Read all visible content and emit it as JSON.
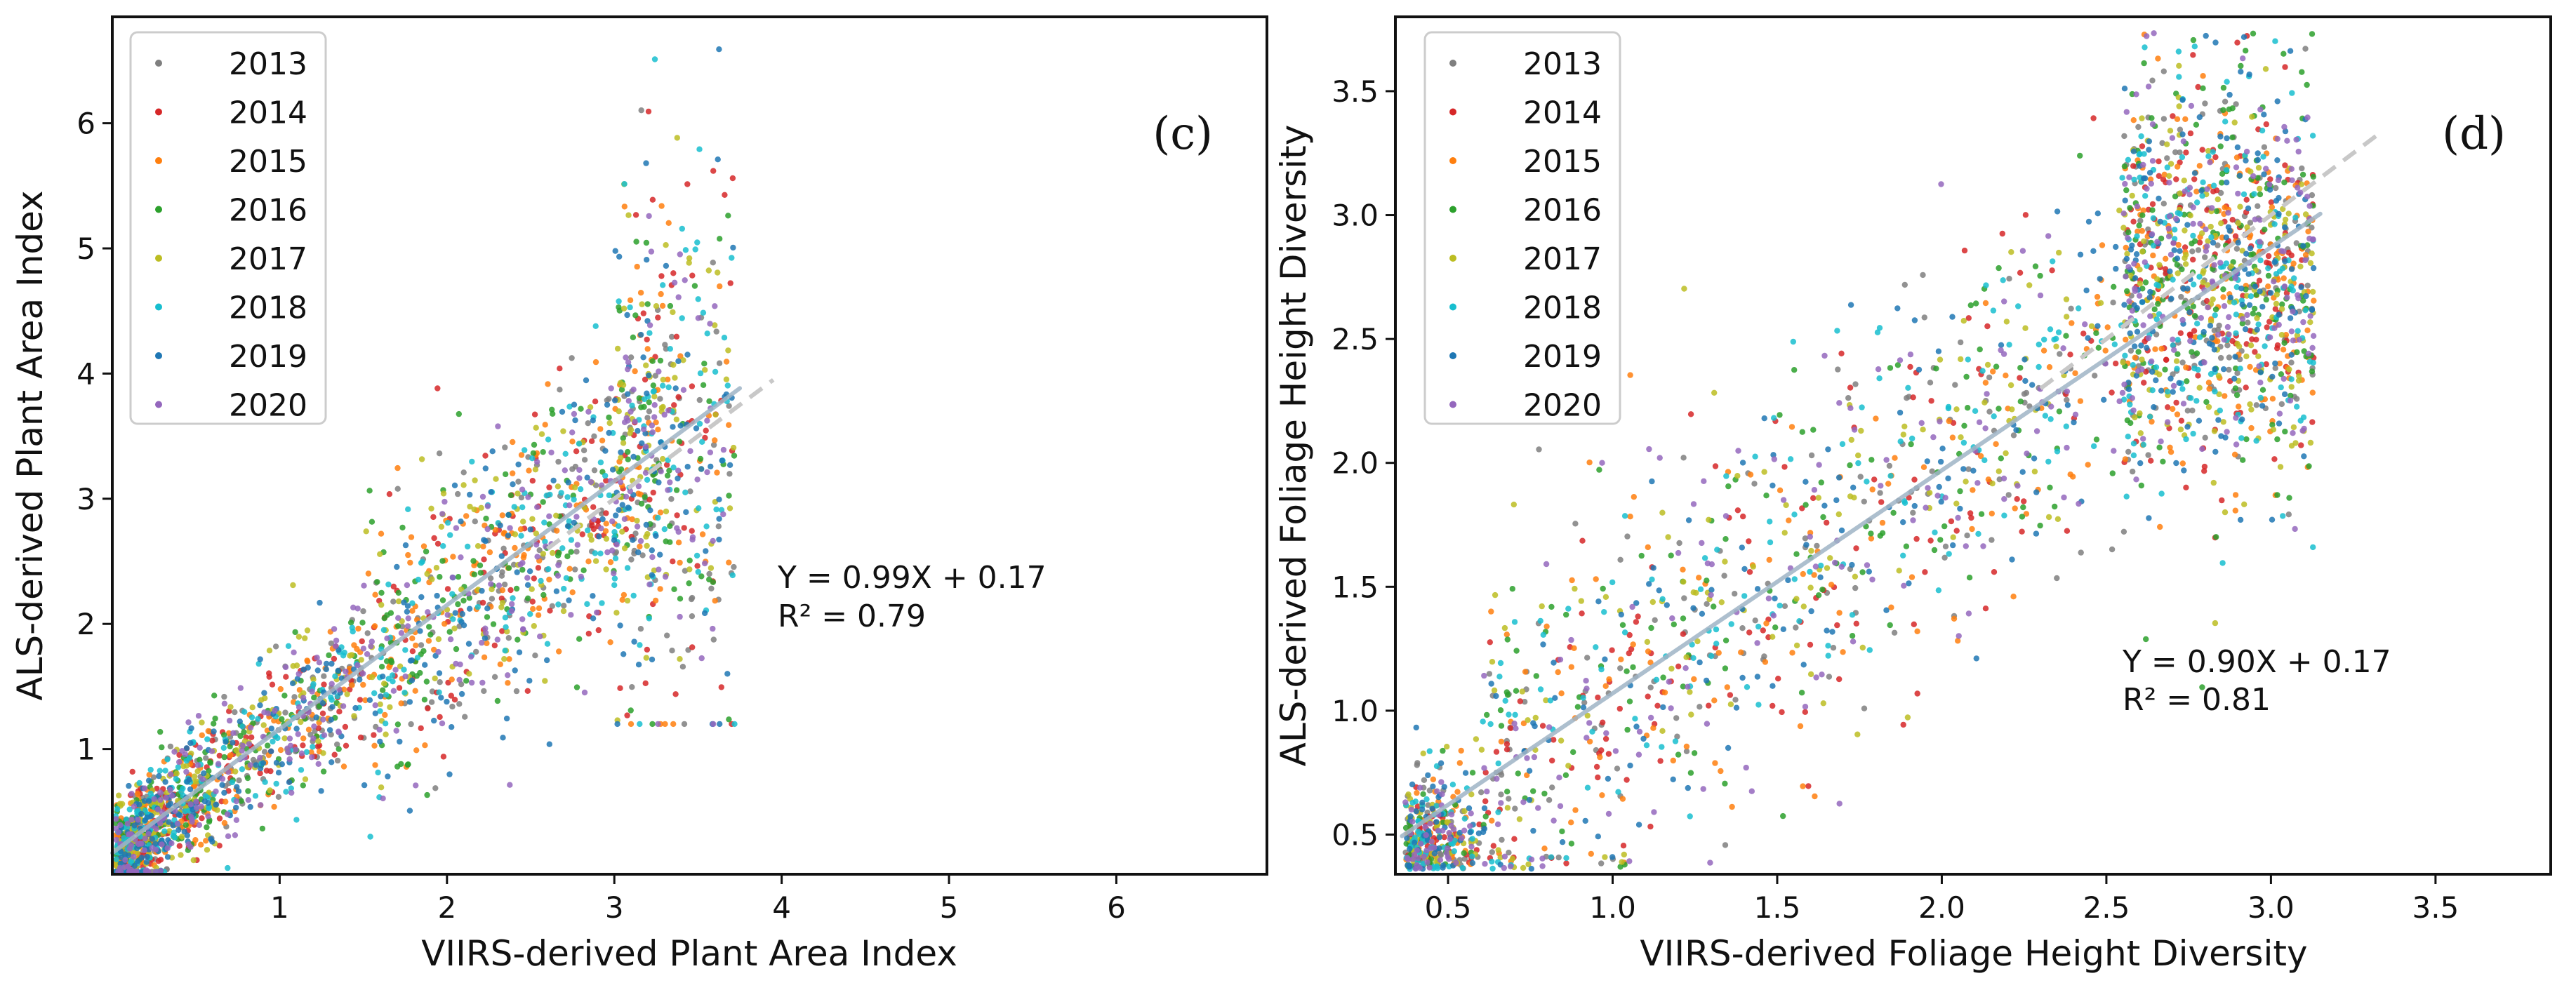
{
  "chart_data": [
    {
      "type": "scatter",
      "panel_label": "(c)",
      "xlabel": "VIIRS-derived Plant Area Index",
      "ylabel": "ALS-derived Plant Area Index",
      "xlim": [
        0,
        6.9
      ],
      "ylim": [
        0,
        6.85
      ],
      "xticks": [
        1,
        2,
        3,
        4,
        5,
        6
      ],
      "yticks": [
        1,
        2,
        3,
        4,
        5,
        6
      ],
      "xtick_labels": [
        "1",
        "2",
        "3",
        "4",
        "5",
        "6"
      ],
      "ytick_labels": [
        "1",
        "2",
        "3",
        "4",
        "5",
        "6"
      ],
      "regression": {
        "equation": "Y = 0.99X + 0.17",
        "r2": "R² = 0.79",
        "slope": 0.99,
        "intercept": 0.17,
        "x_range": [
          0,
          3.75
        ]
      },
      "reference_line": {
        "slope": 1,
        "intercept": 0,
        "x_range": [
          2.6,
          3.95
        ]
      },
      "legend": {
        "placement": "top-left",
        "entries": [
          "2013",
          "2014",
          "2015",
          "2016",
          "2017",
          "2018",
          "2019",
          "2020"
        ]
      },
      "series": [
        {
          "name": "2013",
          "color": "#7f7f7f",
          "points": 320
        },
        {
          "name": "2014",
          "color": "#d62728",
          "points": 320
        },
        {
          "name": "2015",
          "color": "#ff7f0e",
          "points": 320
        },
        {
          "name": "2016",
          "color": "#2ca02c",
          "points": 320
        },
        {
          "name": "2017",
          "color": "#bcbd22",
          "points": 320
        },
        {
          "name": "2018",
          "color": "#17becf",
          "points": 320
        },
        {
          "name": "2019",
          "color": "#1f77b4",
          "points": 320
        },
        {
          "name": "2020",
          "color": "#9467bd",
          "points": 320
        }
      ],
      "point_cloud": {
        "description": "dense cluster near origin (0-1.2), spreading to about 3.7 on x and up to about 6.8 on y",
        "x_range": [
          0,
          3.75
        ],
        "y_range": [
          0,
          6.8
        ]
      }
    },
    {
      "type": "scatter",
      "panel_label": "(d)",
      "xlabel": "VIIRS-derived Foliage Height Diversity",
      "ylabel": "ALS-derived Foliage Height Diversity",
      "xlim": [
        0.34,
        3.85
      ],
      "ylim": [
        0.34,
        3.8
      ],
      "xticks": [
        0.5,
        1.0,
        1.5,
        2.0,
        2.5,
        3.0,
        3.5
      ],
      "yticks": [
        0.5,
        1.0,
        1.5,
        2.0,
        2.5,
        3.0,
        3.5
      ],
      "xtick_labels": [
        "0.5",
        "1.0",
        "1.5",
        "2.0",
        "2.5",
        "3.0",
        "3.5"
      ],
      "ytick_labels": [
        "0.5",
        "1.0",
        "1.5",
        "2.0",
        "2.5",
        "3.0",
        "3.5"
      ],
      "regression": {
        "equation": "Y = 0.90X + 0.17",
        "r2": "R² = 0.81",
        "slope": 0.9,
        "intercept": 0.17,
        "x_range": [
          0.36,
          3.15
        ]
      },
      "reference_line": {
        "slope": 1,
        "intercept": 0,
        "x_range": [
          2.3,
          3.32
        ]
      },
      "legend": {
        "placement": "top-left",
        "entries": [
          "2013",
          "2014",
          "2015",
          "2016",
          "2017",
          "2018",
          "2019",
          "2020"
        ]
      },
      "series": [
        {
          "name": "2013",
          "color": "#7f7f7f",
          "points": 340
        },
        {
          "name": "2014",
          "color": "#d62728",
          "points": 340
        },
        {
          "name": "2015",
          "color": "#ff7f0e",
          "points": 340
        },
        {
          "name": "2016",
          "color": "#2ca02c",
          "points": 340
        },
        {
          "name": "2017",
          "color": "#bcbd22",
          "points": 340
        },
        {
          "name": "2018",
          "color": "#17becf",
          "points": 340
        },
        {
          "name": "2019",
          "color": "#1f77b4",
          "points": 340
        },
        {
          "name": "2020",
          "color": "#9467bd",
          "points": 340
        }
      ],
      "point_cloud": {
        "description": "spread along 1:1 diagonal from about 0.35 to 3.15 on x, densest cluster near x 2.6-3.0, y 2.2-3.7",
        "x_range": [
          0.36,
          3.15
        ],
        "y_range": [
          0.36,
          3.75
        ]
      }
    }
  ]
}
